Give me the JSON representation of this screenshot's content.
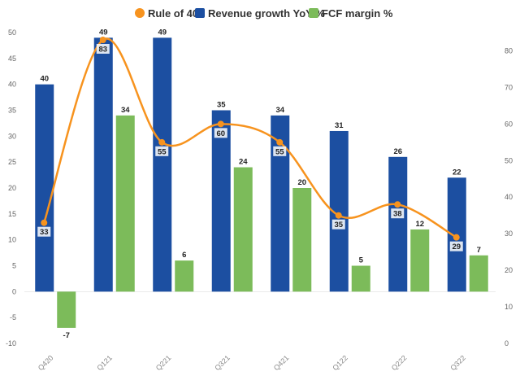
{
  "chart_data": {
    "type": "bar",
    "categories": [
      "Q420",
      "Q121",
      "Q221",
      "Q321",
      "Q421",
      "Q122",
      "Q222",
      "Q322"
    ],
    "series": [
      {
        "name": "Revenue growth YoY %",
        "type": "bar",
        "axis": "left",
        "color": "#1c4fa1",
        "values": [
          40,
          49,
          49,
          35,
          34,
          31,
          26,
          22
        ],
        "labels": [
          "40",
          "49",
          "49",
          "35",
          "34",
          "31",
          "26",
          "22"
        ]
      },
      {
        "name": "FCF margin %",
        "type": "bar",
        "axis": "left",
        "color": "#7cbb5a",
        "values": [
          -7,
          34,
          6,
          24,
          20,
          5,
          12,
          7
        ],
        "labels": [
          "-7",
          "34",
          "6",
          "24",
          "20",
          "5",
          "12",
          "7"
        ]
      },
      {
        "name": "Rule of 40",
        "type": "line",
        "axis": "right",
        "color": "#f7931e",
        "values": [
          33,
          83,
          55,
          60,
          55,
          35,
          38,
          29
        ],
        "labels": [
          "33",
          "83",
          "55",
          "60",
          "55",
          "35",
          "38",
          "29"
        ]
      }
    ],
    "left_axis": {
      "min": -10,
      "max": 50,
      "ticks": [
        "-10",
        "-5",
        "0",
        "5",
        "10",
        "15",
        "20",
        "25",
        "30",
        "35",
        "40",
        "45",
        "50"
      ]
    },
    "right_axis": {
      "min": 0,
      "max": 85,
      "ticks": [
        "0",
        "10",
        "20",
        "30",
        "40",
        "50",
        "60",
        "70",
        "80"
      ]
    },
    "legend": {
      "position": "top"
    },
    "grid": false
  }
}
